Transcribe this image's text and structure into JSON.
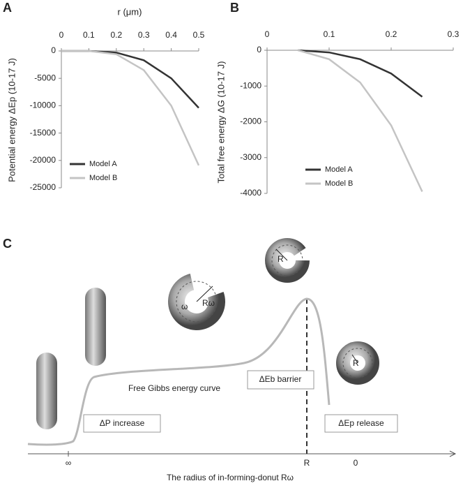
{
  "chart_data": [
    {
      "type": "line",
      "panel": "A",
      "xlabel": "r (μm)",
      "ylabel": "Potential energy ΔEp (10-17 J)",
      "x": [
        0,
        0.1,
        0.2,
        0.3,
        0.4,
        0.5
      ],
      "series": [
        {
          "name": "Model A",
          "color": "#333333",
          "values": [
            0,
            0,
            -300,
            -1700,
            -5000,
            -10400
          ]
        },
        {
          "name": "Model B",
          "color": "#c4c4c4",
          "values": [
            0,
            0,
            -600,
            -3500,
            -10000,
            -20900
          ]
        }
      ],
      "xlim": [
        0,
        0.5
      ],
      "xticks": [
        0,
        0.1,
        0.2,
        0.3,
        0.4,
        0.5
      ],
      "ylim": [
        -25000,
        0
      ],
      "yticks": [
        0,
        -5000,
        -10000,
        -15000,
        -20000,
        -25000
      ],
      "legend": "lower left"
    },
    {
      "type": "line",
      "panel": "B",
      "ylabel": "Total free energy ΔG (10-17 J)",
      "x": [
        0.05,
        0.1,
        0.15,
        0.2,
        0.25
      ],
      "series": [
        {
          "name": "Model A",
          "color": "#333333",
          "values": [
            0,
            -60,
            -250,
            -650,
            -1300
          ]
        },
        {
          "name": "Model B",
          "color": "#c4c4c4",
          "values": [
            0,
            -250,
            -900,
            -2100,
            -3950
          ]
        }
      ],
      "xlim": [
        0,
        0.3
      ],
      "xticks": [
        0,
        0.1,
        0.2,
        0.3
      ],
      "ylim": [
        -4000,
        0
      ],
      "yticks": [
        0,
        -1000,
        -2000,
        -3000,
        -4000
      ],
      "legend": "lower left"
    }
  ],
  "diagram": {
    "panel": "C",
    "curve_label": "Free Gibbs energy curve",
    "barrier": "ΔEb barrier",
    "increase": "ΔP increase",
    "release": "ΔEp release",
    "axis_title": "The radius of in-forming-donut Rω",
    "ticks": [
      "∞",
      "R",
      "0"
    ],
    "donut_labels": [
      "ω",
      "Rω",
      "R",
      "R"
    ]
  }
}
